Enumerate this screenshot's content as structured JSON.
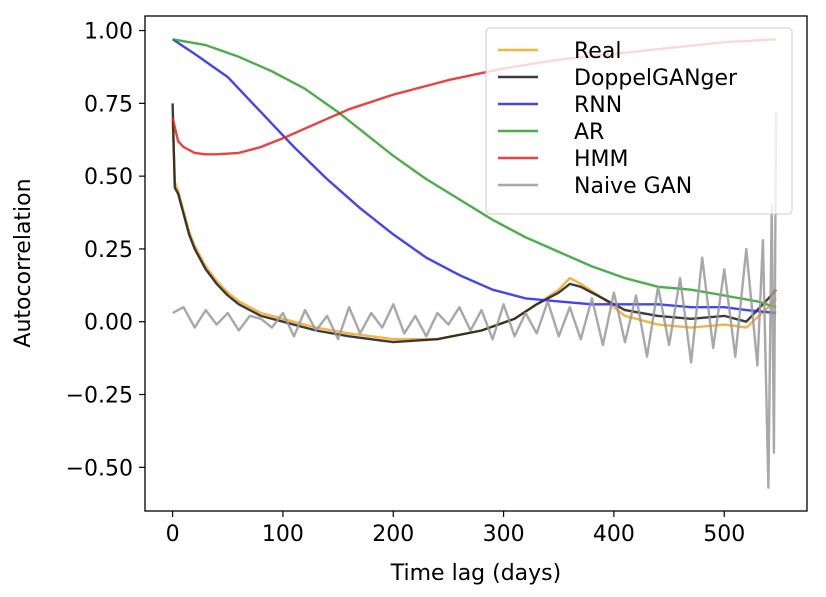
{
  "chart_data": {
    "type": "line",
    "title": "",
    "xlabel": "Time lag (days)",
    "ylabel": "Autocorrelation",
    "xlim": [
      -25,
      575
    ],
    "ylim": [
      -0.65,
      1.05
    ],
    "xticks": [
      0,
      100,
      200,
      300,
      400,
      500
    ],
    "xtick_labels": [
      "0",
      "100",
      "200",
      "300",
      "400",
      "500"
    ],
    "yticks": [
      1.0,
      0.75,
      0.5,
      0.25,
      0.0,
      -0.25,
      -0.5
    ],
    "ytick_labels": [
      "1.00",
      "0.75",
      "0.50",
      "0.25",
      "0.00",
      "−0.25",
      "−0.50"
    ],
    "grid": false,
    "legend_position": "top-right",
    "series": [
      {
        "name": "Real",
        "color": "#f5a623",
        "x": [
          0,
          2,
          5,
          10,
          15,
          20,
          30,
          40,
          50,
          60,
          80,
          100,
          130,
          160,
          200,
          240,
          280,
          310,
          330,
          350,
          360,
          370,
          390,
          410,
          440,
          470,
          500,
          520,
          540,
          547
        ],
        "y": [
          0.69,
          0.48,
          0.45,
          0.38,
          0.31,
          0.26,
          0.19,
          0.14,
          0.1,
          0.07,
          0.03,
          0.01,
          -0.02,
          -0.04,
          -0.06,
          -0.06,
          -0.03,
          0.01,
          0.06,
          0.11,
          0.15,
          0.13,
          0.08,
          0.02,
          -0.01,
          -0.02,
          -0.01,
          -0.02,
          0.05,
          0.08
        ]
      },
      {
        "name": "DoppelGANger",
        "color": "#1a1a1a",
        "x": [
          0,
          2,
          5,
          10,
          15,
          20,
          30,
          40,
          50,
          60,
          80,
          100,
          130,
          160,
          200,
          240,
          280,
          310,
          330,
          350,
          360,
          370,
          390,
          410,
          440,
          470,
          500,
          520,
          540,
          547
        ],
        "y": [
          0.75,
          0.46,
          0.44,
          0.37,
          0.3,
          0.25,
          0.18,
          0.13,
          0.09,
          0.06,
          0.02,
          0.0,
          -0.03,
          -0.05,
          -0.07,
          -0.06,
          -0.03,
          0.01,
          0.06,
          0.1,
          0.13,
          0.12,
          0.08,
          0.04,
          0.02,
          0.01,
          0.02,
          0.0,
          0.08,
          0.11
        ]
      },
      {
        "name": "RNN",
        "color": "#2424e8",
        "x": [
          0,
          20,
          50,
          80,
          110,
          140,
          170,
          200,
          230,
          260,
          290,
          320,
          350,
          380,
          410,
          440,
          470,
          500,
          520,
          547
        ],
        "y": [
          0.97,
          0.92,
          0.84,
          0.72,
          0.6,
          0.49,
          0.39,
          0.3,
          0.22,
          0.16,
          0.11,
          0.08,
          0.07,
          0.06,
          0.06,
          0.06,
          0.05,
          0.05,
          0.04,
          0.03
        ]
      },
      {
        "name": "AR",
        "color": "#2ca02c",
        "x": [
          0,
          30,
          60,
          90,
          120,
          150,
          170,
          200,
          230,
          260,
          290,
          320,
          350,
          380,
          410,
          440,
          470,
          500,
          530,
          547
        ],
        "y": [
          0.97,
          0.95,
          0.91,
          0.86,
          0.8,
          0.72,
          0.66,
          0.57,
          0.49,
          0.42,
          0.35,
          0.29,
          0.24,
          0.19,
          0.15,
          0.12,
          0.11,
          0.09,
          0.07,
          0.05
        ]
      },
      {
        "name": "HMM",
        "color": "#e82020",
        "x": [
          0,
          5,
          10,
          20,
          30,
          40,
          60,
          80,
          100,
          130,
          160,
          200,
          250,
          300,
          350,
          400,
          450,
          500,
          547
        ],
        "y": [
          0.7,
          0.62,
          0.6,
          0.58,
          0.575,
          0.575,
          0.58,
          0.6,
          0.63,
          0.68,
          0.73,
          0.78,
          0.83,
          0.87,
          0.9,
          0.92,
          0.94,
          0.96,
          0.97
        ]
      },
      {
        "name": "Naive GAN",
        "color": "#999999",
        "x": [
          0,
          10,
          20,
          30,
          40,
          50,
          60,
          70,
          80,
          90,
          100,
          110,
          120,
          130,
          140,
          150,
          160,
          170,
          180,
          190,
          200,
          210,
          220,
          230,
          240,
          250,
          260,
          270,
          280,
          290,
          300,
          310,
          320,
          330,
          340,
          350,
          360,
          370,
          380,
          390,
          400,
          410,
          420,
          430,
          440,
          450,
          460,
          470,
          480,
          490,
          500,
          510,
          520,
          530,
          535,
          540,
          543,
          545,
          547
        ],
        "y": [
          0.03,
          0.05,
          -0.02,
          0.04,
          -0.01,
          0.03,
          -0.03,
          0.02,
          0.01,
          -0.02,
          0.03,
          -0.05,
          0.04,
          -0.03,
          0.02,
          -0.06,
          0.05,
          -0.04,
          0.03,
          -0.02,
          0.06,
          -0.04,
          0.02,
          -0.05,
          0.03,
          -0.01,
          0.05,
          -0.03,
          0.04,
          -0.06,
          0.06,
          -0.05,
          0.03,
          -0.04,
          0.07,
          -0.05,
          0.05,
          -0.06,
          0.08,
          -0.08,
          0.1,
          -0.07,
          0.09,
          -0.12,
          0.12,
          -0.08,
          0.15,
          -0.14,
          0.22,
          -0.09,
          0.18,
          -0.12,
          0.25,
          -0.15,
          0.28,
          -0.57,
          0.4,
          -0.45,
          0.72
        ]
      }
    ]
  }
}
